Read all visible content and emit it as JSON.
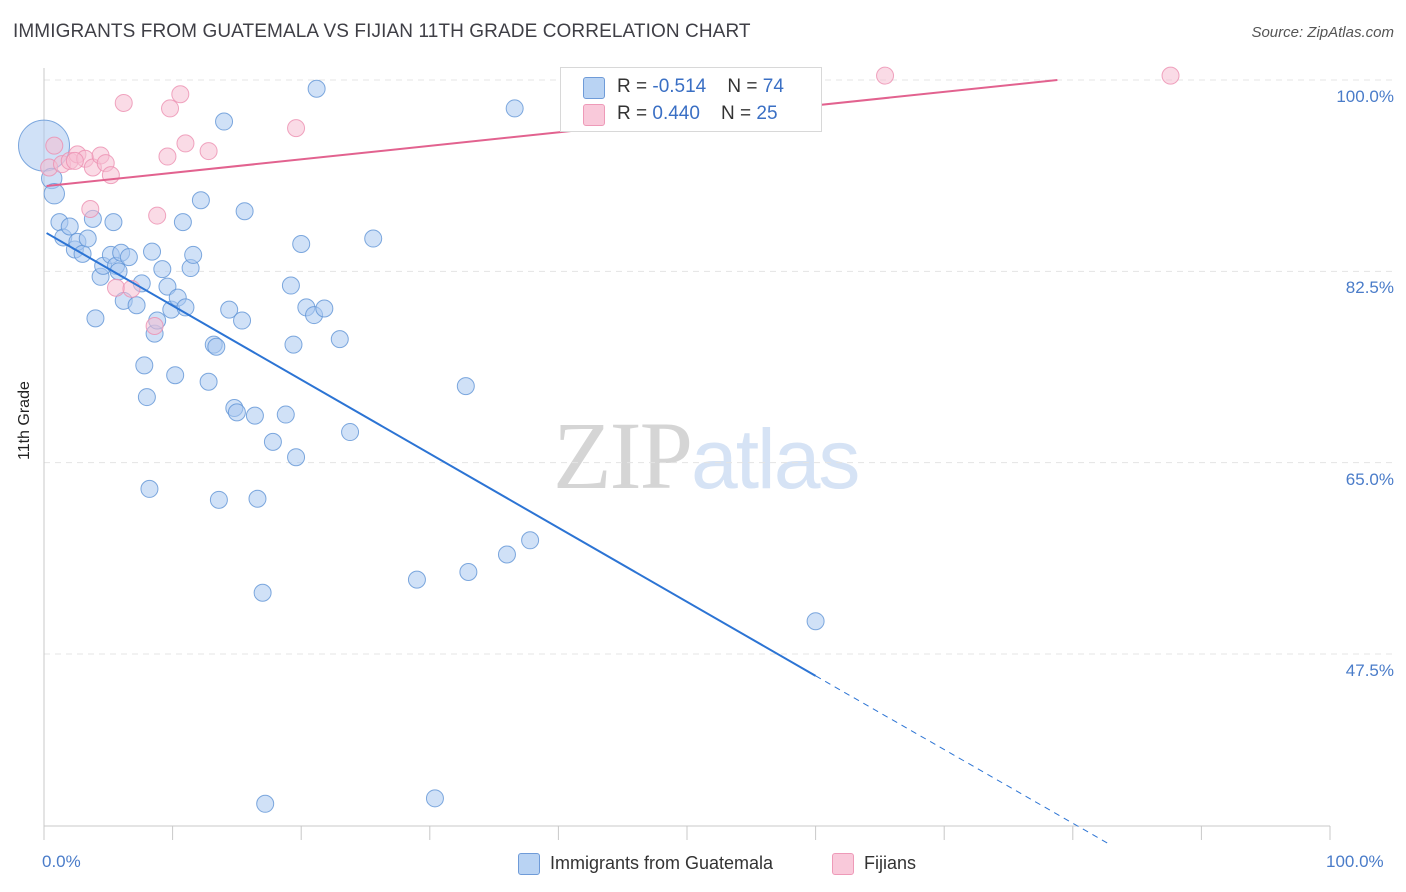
{
  "title": "IMMIGRANTS FROM GUATEMALA VS FIJIAN 11TH GRADE CORRELATION CHART",
  "source": "Source: ZipAtlas.com",
  "watermark": {
    "zip": "ZIP",
    "atlas": "atlas"
  },
  "colors": {
    "blue_fill": "#a9c8f0",
    "blue_stroke": "#5f93d6",
    "blue_line": "#2c74d4",
    "pink_fill": "#f6bdd1",
    "pink_stroke": "#ec8fb0",
    "pink_line": "#e2628f",
    "grid": "#e4e4e4",
    "tick_label": "#4a7cc9"
  },
  "legend_top": {
    "rows": [
      {
        "r_label": "R = ",
        "r_value": "-0.514",
        "n_label": "N = ",
        "n_value": "74"
      },
      {
        "r_label": "R = ",
        "r_value": " 0.440",
        "n_label": "N = ",
        "n_value": "25"
      }
    ]
  },
  "legend_bottom": {
    "series1": "Immigrants from Guatemala",
    "series2": "Fijians"
  },
  "chart_data": {
    "type": "scatter",
    "title": "IMMIGRANTS FROM GUATEMALA VS FIJIAN 11TH GRADE CORRELATION CHART",
    "xlabel": "",
    "ylabel": "11th Grade",
    "xlim": [
      0,
      100
    ],
    "ylim": [
      32,
      101
    ],
    "x_tick_labels": [
      "0.0%",
      "100.0%"
    ],
    "y_ticks": [
      {
        "value": 100.0,
        "label": "100.0%"
      },
      {
        "value": 82.5,
        "label": "82.5%"
      },
      {
        "value": 65.0,
        "label": "65.0%"
      },
      {
        "value": 47.5,
        "label": "47.5%"
      }
    ],
    "grid": true,
    "legend_position": "top-center",
    "series": [
      {
        "name": "Immigrants from Guatemala",
        "color": "#a9c8f0",
        "r": -0.514,
        "n": 74,
        "trend": {
          "x0": 0.2,
          "y0": 86.0,
          "x1": 60,
          "y1": 45.5,
          "dashed_to_x": 83,
          "dashed_to_y": 30
        },
        "points": [
          [
            0.0,
            94.0,
            3
          ],
          [
            0.6,
            91.0,
            1.2
          ],
          [
            0.8,
            89.6,
            1.2
          ],
          [
            1.2,
            87.0,
            1
          ],
          [
            1.5,
            85.6,
            1
          ],
          [
            2.0,
            86.6,
            1
          ],
          [
            2.4,
            84.5,
            1
          ],
          [
            2.6,
            85.2,
            1
          ],
          [
            3.0,
            84.1,
            1
          ],
          [
            3.4,
            85.5,
            1
          ],
          [
            3.8,
            87.3,
            1
          ],
          [
            4.0,
            78.2,
            1
          ],
          [
            4.4,
            82.0,
            1
          ],
          [
            4.6,
            83.0,
            1
          ],
          [
            5.2,
            84.0,
            1
          ],
          [
            5.4,
            87.0,
            1
          ],
          [
            5.6,
            83.0,
            1
          ],
          [
            5.8,
            82.5,
            1
          ],
          [
            6.0,
            84.2,
            1
          ],
          [
            6.2,
            79.8,
            1
          ],
          [
            6.6,
            83.8,
            1
          ],
          [
            7.2,
            79.4,
            1
          ],
          [
            7.6,
            81.4,
            1
          ],
          [
            7.8,
            73.9,
            1
          ],
          [
            8.0,
            71.0,
            1
          ],
          [
            8.2,
            62.6,
            1
          ],
          [
            8.4,
            84.3,
            1
          ],
          [
            8.6,
            76.8,
            1
          ],
          [
            8.8,
            78.0,
            1
          ],
          [
            9.2,
            82.7,
            1
          ],
          [
            9.6,
            81.1,
            1
          ],
          [
            9.9,
            79.0,
            1
          ],
          [
            10.2,
            73.0,
            1
          ],
          [
            10.4,
            80.1,
            1
          ],
          [
            10.8,
            87.0,
            1
          ],
          [
            11.0,
            79.2,
            1
          ],
          [
            11.4,
            82.8,
            1
          ],
          [
            11.6,
            84.0,
            1
          ],
          [
            12.2,
            89.0,
            1
          ],
          [
            12.8,
            72.4,
            1
          ],
          [
            13.2,
            75.8,
            1
          ],
          [
            13.4,
            75.6,
            1
          ],
          [
            13.6,
            61.6,
            1
          ],
          [
            14.0,
            96.2,
            1
          ],
          [
            14.4,
            79.0,
            1
          ],
          [
            14.8,
            70.0,
            1
          ],
          [
            15.0,
            69.6,
            1
          ],
          [
            15.4,
            78.0,
            1
          ],
          [
            15.6,
            88.0,
            1
          ],
          [
            16.4,
            69.3,
            1
          ],
          [
            16.6,
            61.7,
            1
          ],
          [
            17.0,
            53.1,
            1
          ],
          [
            17.2,
            33.8,
            1
          ],
          [
            17.8,
            66.9,
            1
          ],
          [
            18.8,
            69.4,
            1
          ],
          [
            19.2,
            81.2,
            1
          ],
          [
            19.4,
            75.8,
            1
          ],
          [
            19.6,
            65.5,
            1
          ],
          [
            20.0,
            85.0,
            1
          ],
          [
            20.4,
            79.2,
            1
          ],
          [
            21.0,
            78.5,
            1
          ],
          [
            21.2,
            99.2,
            1
          ],
          [
            21.8,
            79.1,
            1
          ],
          [
            23.0,
            76.3,
            1
          ],
          [
            23.8,
            67.8,
            1
          ],
          [
            25.6,
            85.5,
            1
          ],
          [
            29.0,
            54.3,
            1
          ],
          [
            30.4,
            34.3,
            1
          ],
          [
            32.8,
            72.0,
            1
          ],
          [
            33.0,
            55.0,
            1
          ],
          [
            36.0,
            56.6,
            1
          ],
          [
            36.6,
            97.4,
            1
          ],
          [
            37.8,
            57.9,
            1
          ],
          [
            60.0,
            50.5,
            1
          ]
        ]
      },
      {
        "name": "Fijians",
        "color": "#f6bdd1",
        "r": 0.44,
        "n": 25,
        "trend": {
          "x0": 0.2,
          "y0": 90.3,
          "x1": 78.8,
          "y1": 100.0
        },
        "points": [
          [
            0.4,
            92.0,
            1
          ],
          [
            0.8,
            94.0,
            1
          ],
          [
            1.4,
            92.3,
            1
          ],
          [
            2.0,
            92.6,
            1
          ],
          [
            2.6,
            93.2,
            1
          ],
          [
            3.2,
            92.8,
            1
          ],
          [
            3.6,
            88.2,
            1
          ],
          [
            3.8,
            92.0,
            1
          ],
          [
            4.4,
            93.1,
            1
          ],
          [
            4.8,
            92.4,
            1
          ],
          [
            5.2,
            91.3,
            1
          ],
          [
            5.6,
            81.0,
            1
          ],
          [
            6.2,
            97.9,
            1
          ],
          [
            6.8,
            80.9,
            1
          ],
          [
            8.6,
            77.5,
            1
          ],
          [
            8.8,
            87.6,
            1
          ],
          [
            9.6,
            93.0,
            1
          ],
          [
            9.8,
            97.4,
            1
          ],
          [
            10.6,
            98.7,
            1
          ],
          [
            11.0,
            94.2,
            1
          ],
          [
            12.8,
            93.5,
            1
          ],
          [
            19.6,
            95.6,
            1
          ],
          [
            65.4,
            100.4,
            1
          ],
          [
            87.6,
            100.4,
            1
          ],
          [
            2.4,
            92.6,
            1
          ]
        ]
      }
    ]
  }
}
